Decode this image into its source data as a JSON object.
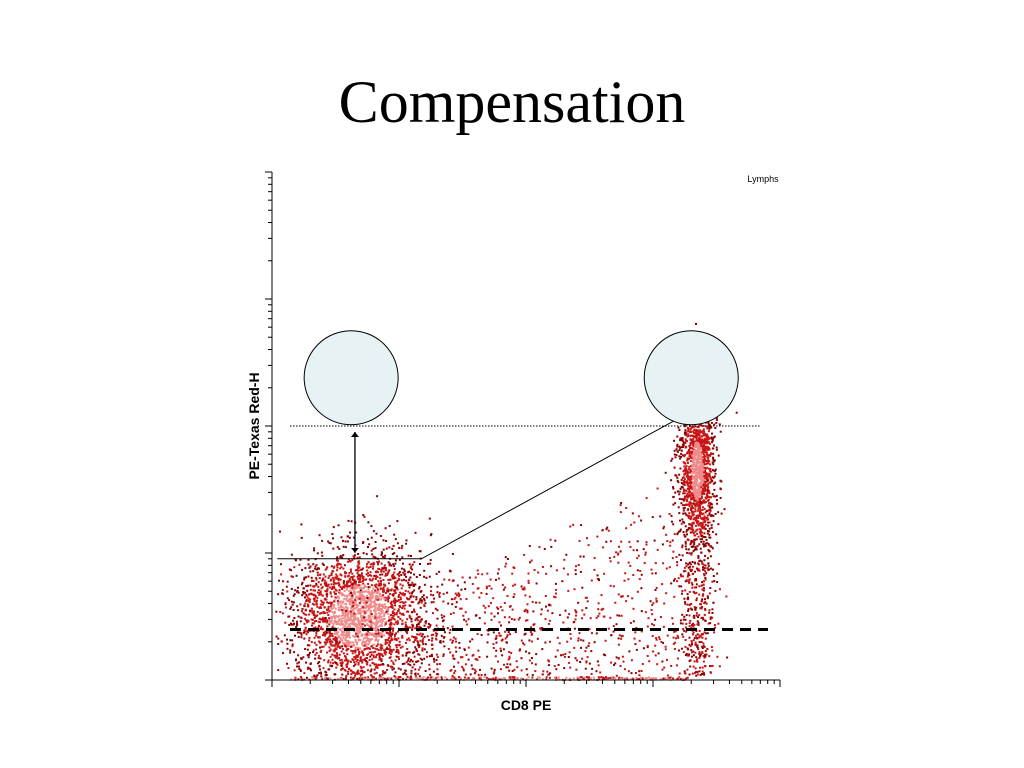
{
  "slide": {
    "title": "Compensation"
  },
  "chart_data": {
    "type": "scatter",
    "title": "",
    "xlabel": "CD8 PE",
    "ylabel": "PE-Texas Red-H",
    "xscale": "log",
    "yscale": "log",
    "xlim": [
      1,
      10000
    ],
    "ylim": [
      1,
      10000
    ],
    "gate_label": "Lymphs",
    "grid": false,
    "legend": "none",
    "colors": {
      "dots_dense": "#f08a8a",
      "dots": "#c81414",
      "dots_dark": "#8a0000",
      "circle_fill": "#e6f2f4",
      "lines": "#000000"
    },
    "populations": [
      {
        "name": "CD8-negative",
        "x_median": 4.8,
        "y_median": 3.2,
        "x_spread_decades": 0.35,
        "y_spread_decades": 0.38
      },
      {
        "name": "CD8-positive",
        "x_median": 2200,
        "y_median": 45,
        "x_spread_decades": 0.12,
        "y_spread_decades": 0.45
      },
      {
        "name": "diagonal-scatter",
        "x_range": [
          30,
          2000
        ],
        "y_relation": "scattered below diagonal gate"
      }
    ],
    "reference_lines": {
      "dotted_horizontal_y": 100,
      "dashed_horizontal_y": 2.5,
      "gate_polyline": [
        [
          1.1,
          9
        ],
        [
          15,
          9
        ],
        [
          4000,
          190
        ]
      ]
    },
    "circles": [
      {
        "x": 4.2,
        "y": 240
      },
      {
        "x": 2000,
        "y": 240
      }
    ],
    "arrow": {
      "x": 4.5,
      "y_from": 100,
      "y_to": 9,
      "bidirectional": true
    }
  }
}
